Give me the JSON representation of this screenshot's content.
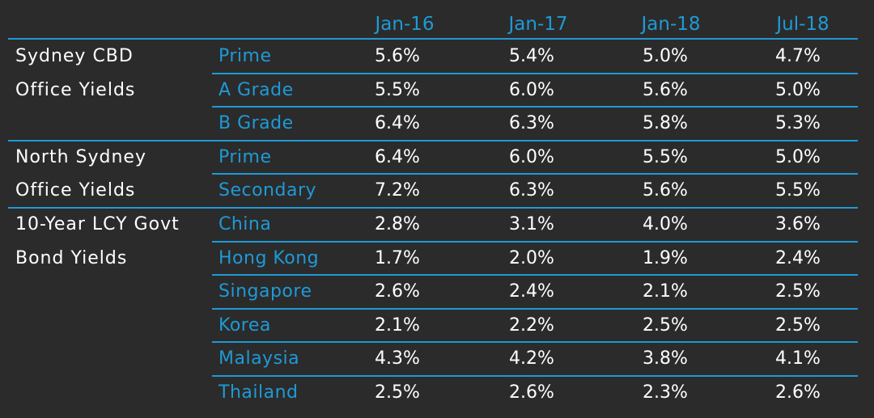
{
  "columns": [
    "Jan-16",
    "Jan-17",
    "Jan-18",
    "Jul-18"
  ],
  "groups": [
    {
      "label_lines": [
        "Sydney CBD",
        "Office Yields"
      ],
      "rows": [
        {
          "label": "Prime",
          "values": [
            "5.6%",
            "5.4%",
            "5.0%",
            "4.7%"
          ]
        },
        {
          "label": "A Grade",
          "values": [
            "5.5%",
            "6.0%",
            "5.6%",
            "5.0%"
          ]
        },
        {
          "label": "B Grade",
          "values": [
            "6.4%",
            "6.3%",
            "5.8%",
            "5.3%"
          ]
        }
      ]
    },
    {
      "label_lines": [
        "North Sydney",
        "Office Yields"
      ],
      "rows": [
        {
          "label": "Prime",
          "values": [
            "6.4%",
            "6.0%",
            "5.5%",
            "5.0%"
          ]
        },
        {
          "label": "Secondary",
          "values": [
            "7.2%",
            "6.3%",
            "5.6%",
            "5.5%"
          ]
        }
      ]
    },
    {
      "label_lines": [
        "10-Year LCY Govt",
        "Bond Yields"
      ],
      "rows": [
        {
          "label": "China",
          "values": [
            "2.8%",
            "3.1%",
            "4.0%",
            "3.6%"
          ]
        },
        {
          "label": "Hong Kong",
          "values": [
            "1.7%",
            "2.0%",
            "1.9%",
            "2.4%"
          ]
        },
        {
          "label": "Singapore",
          "values": [
            "2.6%",
            "2.4%",
            "2.1%",
            "2.5%"
          ]
        },
        {
          "label": "Korea",
          "values": [
            "2.1%",
            "2.2%",
            "2.5%",
            "2.5%"
          ]
        },
        {
          "label": "Malaysia",
          "values": [
            "4.3%",
            "4.2%",
            "3.8%",
            "4.1%"
          ]
        },
        {
          "label": "Thailand",
          "values": [
            "2.5%",
            "2.6%",
            "2.3%",
            "2.6%"
          ]
        }
      ]
    }
  ],
  "colors": {
    "background": "#2b2b2b",
    "accent": "#1e9ad6",
    "text": "#ffffff"
  }
}
